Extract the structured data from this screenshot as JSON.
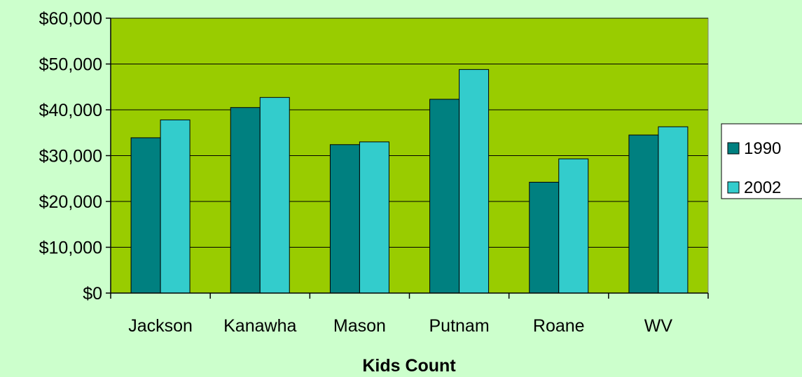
{
  "chart_data": {
    "type": "bar",
    "categories": [
      "Jackson",
      "Kanawha",
      "Mason",
      "Putnam",
      "Roane",
      "WV"
    ],
    "series": [
      {
        "name": "1990",
        "color": "#008080",
        "values": [
          33900,
          40500,
          32400,
          42300,
          24200,
          34500
        ]
      },
      {
        "name": "2002",
        "color": "#33cccc",
        "values": [
          37800,
          42700,
          33000,
          48800,
          29300,
          36300
        ]
      }
    ],
    "xlabel": "Kids Count",
    "ylabel": "",
    "ylim": [
      0,
      60000
    ],
    "yticks": [
      0,
      10000,
      20000,
      30000,
      40000,
      50000,
      60000
    ],
    "ytick_labels": [
      "$0",
      "$10,000",
      "$20,000",
      "$30,000",
      "$40,000",
      "$50,000",
      "$60,000"
    ],
    "grid": true,
    "legend_position": "right",
    "colors": {
      "plot_background": "#99cc00",
      "page_background": "#ccffcc"
    }
  }
}
